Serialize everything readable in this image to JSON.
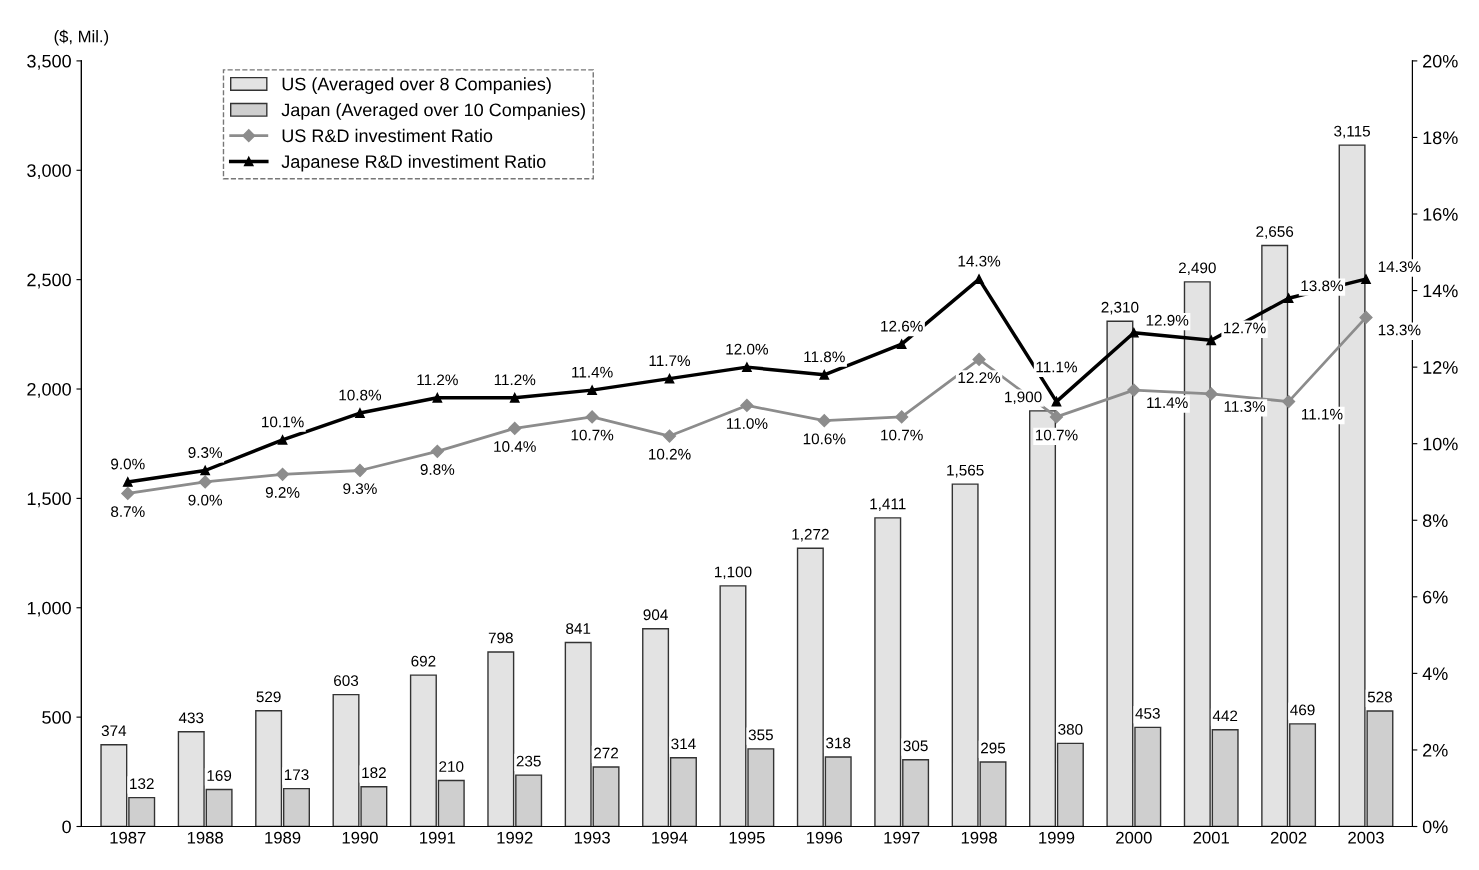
{
  "chart_data": {
    "type": "bar",
    "ylabel": "($, Mil.)",
    "categories": [
      "1987",
      "1988",
      "1989",
      "1990",
      "1991",
      "1992",
      "1993",
      "1994",
      "1995",
      "1996",
      "1997",
      "1998",
      "1999",
      "2000",
      "2001",
      "2002",
      "2003"
    ],
    "series": [
      {
        "name": "US (Averaged over 8 Companies)",
        "color": "#e3e3e3",
        "values": [
          374,
          433,
          529,
          603,
          692,
          798,
          841,
          904,
          1100,
          1272,
          1411,
          1565,
          1900,
          2310,
          2490,
          2656,
          3115
        ],
        "value_labels": [
          "374",
          "433",
          "529",
          "603",
          "692",
          "798",
          "841",
          "904",
          "1,100",
          "1,272",
          "1,411",
          "1,565",
          "1,900",
          "2,310",
          "2,490",
          "2,656",
          "3,115"
        ]
      },
      {
        "name": "Japan (Averaged over 10 Companies)",
        "color": "#cfcfcf",
        "values": [
          132,
          169,
          173,
          182,
          210,
          235,
          272,
          314,
          355,
          318,
          305,
          295,
          380,
          453,
          442,
          469,
          528
        ],
        "value_labels": [
          "132",
          "169",
          "173",
          "182",
          "210",
          "235",
          "272",
          "314",
          "355",
          "318",
          "305",
          "295",
          "380",
          "453",
          "442",
          "469",
          "528"
        ]
      },
      {
        "name": "US R&D investiment Ratio",
        "type": "line",
        "axis": "y2",
        "color": "#8c8c8c",
        "marker": "diamond",
        "values": [
          8.7,
          9.0,
          9.2,
          9.3,
          9.8,
          10.4,
          10.7,
          10.2,
          11.0,
          10.6,
          10.7,
          12.2,
          10.7,
          11.4,
          11.3,
          11.1,
          13.3
        ],
        "value_labels": [
          "8.7%",
          "9.0%",
          "9.2%",
          "9.3%",
          "9.8%",
          "10.4%",
          "10.7%",
          "10.2%",
          "11.0%",
          "10.6%",
          "10.7%",
          "12.2%",
          "10.7%",
          "11.4%",
          "11.3%",
          "11.1%",
          "13.3%"
        ]
      },
      {
        "name": "Japanese R&D investiment Ratio",
        "type": "line",
        "axis": "y2",
        "color": "#000000",
        "marker": "triangle",
        "values": [
          9.0,
          9.3,
          10.1,
          10.8,
          11.2,
          11.2,
          11.4,
          11.7,
          12.0,
          11.8,
          12.6,
          14.3,
          11.1,
          12.9,
          12.7,
          13.8,
          14.3
        ],
        "value_labels": [
          "9.0%",
          "9.3%",
          "10.1%",
          "10.8%",
          "11.2%",
          "11.2%",
          "11.4%",
          "11.7%",
          "12.0%",
          "11.8%",
          "12.6%",
          "14.3%",
          "11.1%",
          "12.9%",
          "12.7%",
          "13.8%",
          "14.3%"
        ]
      }
    ],
    "ylim": [
      0,
      3500
    ],
    "yticks": [
      0,
      500,
      {
        "value": 1000,
        "label": "1,000"
      },
      {
        "value": 1500,
        "label": "1,500"
      },
      {
        "value": 2000,
        "label": "2,000"
      },
      {
        "value": 2500,
        "label": "2,500"
      },
      {
        "value": 3000,
        "label": "3,000"
      },
      {
        "value": 3500,
        "label": "3,500"
      }
    ],
    "y2lim": [
      0,
      20
    ],
    "y2ticks": [
      {
        "value": 0,
        "label": "0%"
      },
      {
        "value": 2,
        "label": "2%"
      },
      {
        "value": 4,
        "label": "4%"
      },
      {
        "value": 6,
        "label": "6%"
      },
      {
        "value": 8,
        "label": "8%"
      },
      {
        "value": 10,
        "label": "10%"
      },
      {
        "value": 12,
        "label": "12%"
      },
      {
        "value": 14,
        "label": "14%"
      },
      {
        "value": 16,
        "label": "16%"
      },
      {
        "value": 18,
        "label": "18%"
      },
      {
        "value": 20,
        "label": "20%"
      }
    ],
    "grid": false,
    "legend": "top left"
  }
}
